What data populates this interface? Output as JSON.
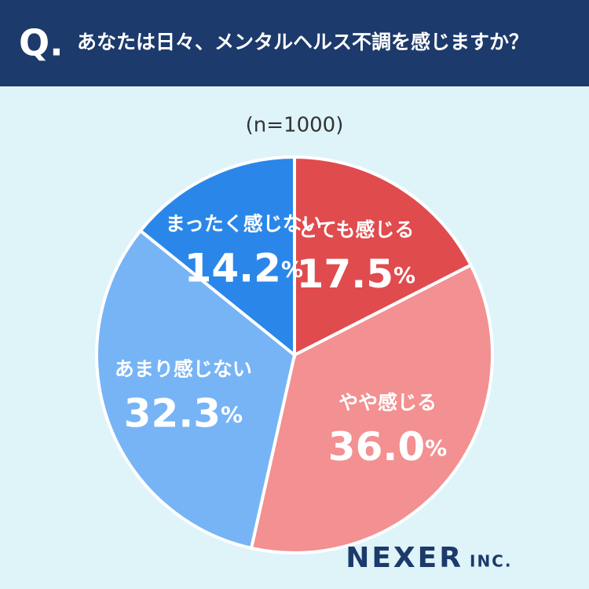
{
  "chart_data": {
    "type": "pie",
    "question_mark": "Q.",
    "title": "あなたは日々、メンタルヘルス不調を感じますか？",
    "subtitle": "(n=1000)",
    "categories": [
      "とても感じる",
      "やや感じる",
      "あまり感じない",
      "まったく感じない"
    ],
    "values": [
      17.5,
      36.0,
      32.3,
      14.2
    ],
    "value_labels": [
      "17.5%",
      "36.0%",
      "32.3%",
      "14.2%"
    ],
    "colors": [
      "#e04b4e",
      "#f39091",
      "#76b4f5",
      "#2a87e9"
    ],
    "logo": "NEXER",
    "logo_suffix": "INC."
  }
}
